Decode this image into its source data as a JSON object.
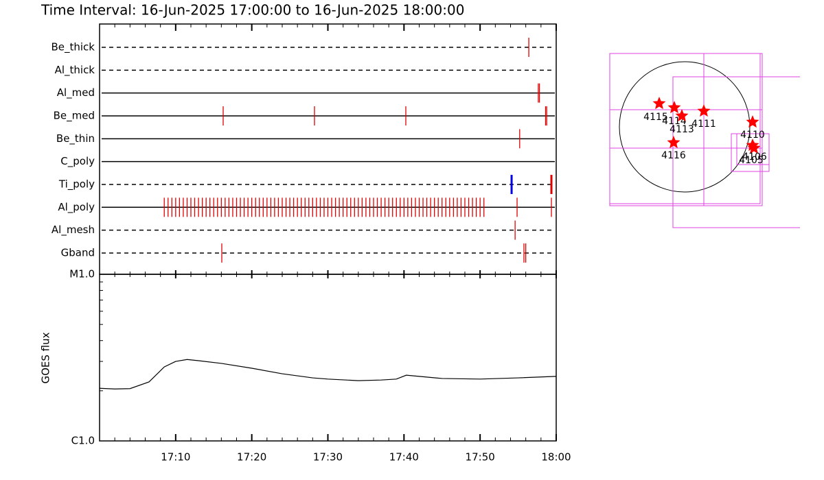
{
  "title": "Time Interval: 16-Jun-2025 17:00:00 to 16-Jun-2025 18:00:00",
  "chart_data": [
    {
      "type": "timeline",
      "xlim": [
        0,
        60
      ],
      "rows": [
        {
          "label": "Be_thick",
          "style": "dashed",
          "color": "#e00000",
          "events": [
            56.4
          ]
        },
        {
          "label": "Al_thick",
          "style": "dashed",
          "color": "#e00000",
          "events": []
        },
        {
          "label": "Al_med",
          "style": "solid",
          "color": "#e00000",
          "events": [
            57.65,
            57.8
          ]
        },
        {
          "label": "Be_med",
          "style": "solid",
          "color": "#e00000",
          "events": [
            16.24,
            28.24,
            40.24,
            58.6,
            58.75
          ]
        },
        {
          "label": "Be_thin",
          "style": "solid",
          "color": "#e00000",
          "events": [
            55.2
          ]
        },
        {
          "label": "C_poly",
          "style": "solid",
          "color": "#e00000",
          "events": []
        },
        {
          "label": "Ti_poly",
          "style": "dashed",
          "color": "#e00000",
          "colors": [
            "#0000e0",
            "#e00000"
          ],
          "events": [
            54.14,
            59.37
          ]
        },
        {
          "label": "Al_poly",
          "style": "solid",
          "color": "#e00000",
          "events": [
            8.5,
            9,
            9.5,
            10,
            10.5,
            11,
            11.5,
            12,
            12.5,
            13,
            13.5,
            14,
            14.5,
            15,
            15.5,
            16,
            16.5,
            17,
            17.5,
            18,
            18.5,
            19,
            19.5,
            20,
            20.5,
            21,
            21.5,
            22,
            22.5,
            23,
            23.5,
            24,
            24.5,
            25,
            25.5,
            26,
            26.5,
            27,
            27.5,
            28,
            28.5,
            29,
            29.5,
            30,
            30.5,
            31,
            31.5,
            32,
            32.5,
            33,
            33.5,
            34,
            34.5,
            35,
            35.5,
            36,
            36.5,
            37,
            37.5,
            38,
            38.5,
            39,
            39.5,
            40,
            40.5,
            41,
            41.5,
            42,
            42.5,
            43,
            43.5,
            44,
            44.5,
            45,
            45.5,
            46,
            46.5,
            47,
            47.5,
            48,
            48.5,
            49,
            49.5,
            50,
            50.5,
            54.86,
            59.37
          ]
        },
        {
          "label": "Al_mesh",
          "style": "dashed",
          "color": "#e00000",
          "events": [
            54.6
          ]
        },
        {
          "label": "Gband",
          "style": "dashed",
          "color": "#e00000",
          "events": [
            16.06,
            55.76,
            56.0
          ]
        }
      ]
    },
    {
      "type": "line",
      "ylabel": "GOES flux",
      "log": true,
      "color": "#000000",
      "x": [
        0,
        2,
        4,
        6.5,
        8.5,
        10,
        11.5,
        13,
        16,
        20,
        24,
        28,
        30,
        34,
        37,
        39,
        40.3,
        42,
        45,
        50,
        55,
        60
      ],
      "values": [
        2.07e-06,
        2.05e-06,
        2.06e-06,
        2.26e-06,
        2.78e-06,
        3e-06,
        3.08e-06,
        3.03e-06,
        2.92e-06,
        2.73e-06,
        2.53e-06,
        2.39e-06,
        2.35e-06,
        2.3e-06,
        2.32e-06,
        2.35e-06,
        2.48e-06,
        2.44e-06,
        2.37e-06,
        2.35e-06,
        2.39e-06,
        2.44e-06
      ],
      "xlim": [
        0,
        60
      ],
      "xticks": [
        {
          "value": 10,
          "label": "17:10"
        },
        {
          "value": 20,
          "label": "17:20"
        },
        {
          "value": 30,
          "label": "17:30"
        },
        {
          "value": 40,
          "label": "17:40"
        },
        {
          "value": 50,
          "label": "17:50"
        },
        {
          "value": 60,
          "label": "18:00"
        }
      ],
      "xminorticks": [
        2,
        4,
        6,
        8,
        12,
        14,
        16,
        18,
        22,
        24,
        26,
        28,
        32,
        34,
        36,
        38,
        42,
        44,
        46,
        48,
        52,
        54,
        56,
        58
      ],
      "ylim": [
        1e-06,
        1e-05
      ],
      "yticks": [
        {
          "value": 1e-06,
          "label": "C1.0"
        },
        {
          "value": 1e-05,
          "label": "M1.0"
        }
      ],
      "yminorticks": [
        2e-06,
        3e-06,
        4e-06,
        5e-06,
        6e-06,
        7e-06,
        8e-06,
        9e-06
      ]
    }
  ],
  "map": {
    "regions": [
      "4115",
      "4114",
      "4113",
      "4111",
      "4110",
      "4116",
      "4105",
      "4106"
    ]
  }
}
